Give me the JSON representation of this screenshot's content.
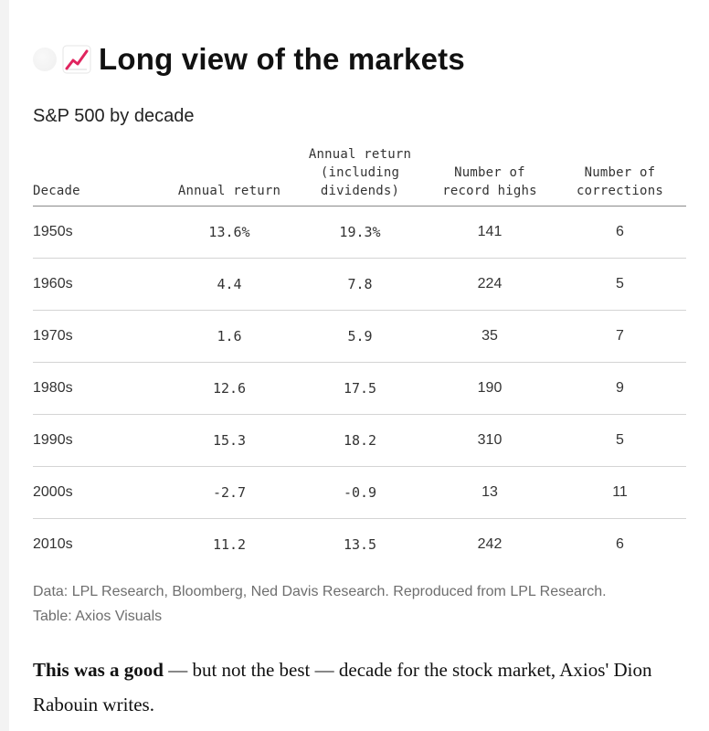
{
  "headline": "Long view of the markets",
  "icons": {
    "headline_emoji": "chart-increasing-icon"
  },
  "colors": {
    "chart_icon_line": "#e0245e",
    "source_text": "#6e6e6e",
    "rule": "#8a8a8a"
  },
  "chart_data": {
    "type": "table",
    "title": "S&P 500 by decade",
    "columns": [
      "Decade",
      "Annual return",
      "Annual return\n(including\ndividends)",
      "Number of\nrecord highs",
      "Number of\ncorrections"
    ],
    "rows": [
      [
        "1950s",
        "13.6%",
        "19.3%",
        "141",
        "6"
      ],
      [
        "1960s",
        "4.4",
        "7.8",
        "224",
        "5"
      ],
      [
        "1970s",
        "1.6",
        "5.9",
        "35",
        "7"
      ],
      [
        "1980s",
        "12.6",
        "17.5",
        "190",
        "9"
      ],
      [
        "1990s",
        "15.3",
        "18.2",
        "310",
        "5"
      ],
      [
        "2000s",
        "-2.7",
        "-0.9",
        "13",
        "11"
      ],
      [
        "2010s",
        "11.2",
        "13.5",
        "242",
        "6"
      ]
    ]
  },
  "source": {
    "line1": "Data: LPL Research, Bloomberg, Ned Davis Research. Reproduced from LPL Research.",
    "line2": "Table: Axios Visuals"
  },
  "body": {
    "bold": "This was a good",
    "rest": " — but not the best — decade for the stock market, Axios' Dion Rabouin writes."
  }
}
